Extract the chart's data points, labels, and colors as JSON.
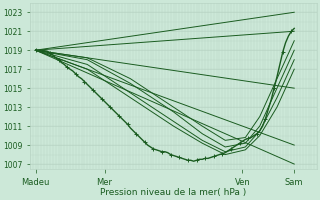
{
  "xlabel": "Pression niveau de la mer( hPa )",
  "xlim": [
    0,
    100
  ],
  "ylim": [
    1006.5,
    1024
  ],
  "yticks": [
    1007,
    1009,
    1011,
    1013,
    1015,
    1017,
    1019,
    1021,
    1023
  ],
  "xtick_positions": [
    2,
    26,
    74,
    92
  ],
  "xtick_labels": [
    "Madeu",
    "Mer",
    "Ven",
    "Sam"
  ],
  "bg_color": "#cce8d8",
  "grid_color_v": "#b8d4c4",
  "grid_color_h": "#b8d4c4",
  "line_color": "#1a5c20",
  "figsize": [
    3.2,
    2.0
  ],
  "dpi": 100,
  "fan_lines": [
    {
      "x0": 2,
      "y0": 1019,
      "x1": 92,
      "y1": 1023
    },
    {
      "x0": 2,
      "y0": 1019,
      "x1": 92,
      "y1": 1021
    },
    {
      "x0": 2,
      "y0": 1019,
      "x1": 92,
      "y1": 1015
    },
    {
      "x0": 2,
      "y0": 1019,
      "x1": 92,
      "y1": 1009
    },
    {
      "x0": 2,
      "y0": 1019,
      "x1": 92,
      "y1": 1007
    }
  ],
  "ensemble_lines": [
    {
      "x": [
        2,
        20,
        35,
        50,
        60,
        68,
        75,
        80,
        86,
        92
      ],
      "y": [
        1019,
        1017,
        1014,
        1011,
        1009.2,
        1008.0,
        1008.5,
        1010,
        1013,
        1017
      ]
    },
    {
      "x": [
        2,
        20,
        35,
        50,
        60,
        68,
        75,
        80,
        86,
        92
      ],
      "y": [
        1019,
        1017.5,
        1014.5,
        1011.5,
        1009.5,
        1008.3,
        1008.8,
        1010.5,
        1014,
        1018
      ]
    },
    {
      "x": [
        2,
        20,
        35,
        50,
        60,
        68,
        75,
        80,
        86,
        92
      ],
      "y": [
        1019,
        1018,
        1015.5,
        1012.5,
        1010.2,
        1008.8,
        1009.2,
        1011,
        1015,
        1019
      ]
    },
    {
      "x": [
        2,
        20,
        35,
        50,
        60,
        68,
        75,
        80,
        86,
        92
      ],
      "y": [
        1019,
        1018.2,
        1016,
        1013,
        1011,
        1009.5,
        1009.8,
        1012,
        1016,
        1020
      ]
    }
  ],
  "main_x": [
    2,
    4,
    6,
    7,
    8,
    9,
    10,
    11,
    12,
    13,
    14,
    15,
    16,
    17,
    18,
    19,
    20,
    21,
    22,
    23,
    24,
    25,
    26,
    27,
    28,
    29,
    30,
    31,
    32,
    33,
    34,
    35,
    36,
    37,
    38,
    39,
    40,
    41,
    42,
    43,
    44,
    45,
    46,
    47,
    48,
    49,
    50,
    51,
    52,
    53,
    54,
    55,
    56,
    57,
    58,
    59,
    60,
    61,
    62,
    63,
    64,
    65,
    66,
    67,
    68,
    69,
    70,
    71,
    72,
    73,
    74,
    75,
    76,
    77,
    78,
    79,
    80,
    81,
    82,
    83,
    84,
    85,
    86,
    87,
    88,
    89,
    90,
    91,
    92
  ],
  "main_y": [
    1019,
    1019,
    1018.9,
    1018.7,
    1018.5,
    1018.2,
    1018.0,
    1017.7,
    1017.5,
    1017.2,
    1017.0,
    1016.8,
    1016.5,
    1016.2,
    1016.0,
    1015.7,
    1015.4,
    1015.1,
    1014.8,
    1014.5,
    1014.2,
    1013.9,
    1013.6,
    1013.3,
    1013.0,
    1012.7,
    1012.4,
    1012.1,
    1011.8,
    1011.5,
    1011.2,
    1010.8,
    1010.5,
    1010.2,
    1009.9,
    1009.6,
    1009.3,
    1009.0,
    1008.8,
    1008.6,
    1008.5,
    1008.4,
    1008.3,
    1008.3,
    1008.2,
    1008.0,
    1007.9,
    1007.8,
    1007.7,
    1007.6,
    1007.5,
    1007.4,
    1007.4,
    1007.3,
    1007.4,
    1007.5,
    1007.5,
    1007.6,
    1007.6,
    1007.7,
    1007.8,
    1007.9,
    1008.0,
    1008.1,
    1008.2,
    1008.4,
    1008.6,
    1008.8,
    1009.0,
    1009.2,
    1009.4,
    1009.6,
    1009.7,
    1009.8,
    1010.0,
    1010.2,
    1010.5,
    1011.0,
    1011.8,
    1012.8,
    1013.8,
    1015.0,
    1016.2,
    1017.5,
    1018.8,
    1019.8,
    1020.5,
    1021.0,
    1021.3
  ]
}
